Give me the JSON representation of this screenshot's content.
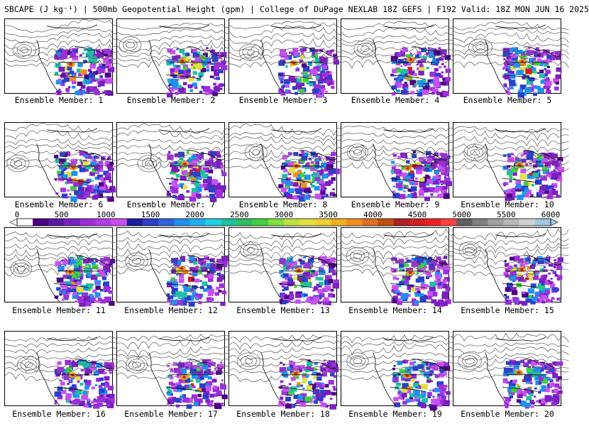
{
  "title": "SBCAPE (J kg⁻¹) | 500mb Geopotential Height (gpm) | College of DuPage NEXLAB 18Z GEFS | F192 Valid: 18Z MON JUN 16 2025",
  "members": [
    {
      "label": "Ensemble Member: 1",
      "low": [
        0.18,
        0.42
      ]
    },
    {
      "label": "Ensemble Member: 2",
      "low": [
        0.12,
        0.35
      ]
    },
    {
      "label": "Ensemble Member: 3",
      "low": [
        0.2,
        0.45
      ]
    },
    {
      "label": "Ensemble Member: 4",
      "low": [
        0.22,
        0.4
      ]
    },
    {
      "label": "Ensemble Member: 5",
      "low": [
        0.25,
        0.38
      ]
    },
    {
      "label": "Ensemble Member: 6",
      "low": [
        0.12,
        0.55
      ]
    },
    {
      "label": "Ensemble Member: 7",
      "low": [
        0.3,
        0.55
      ]
    },
    {
      "label": "Ensemble Member: 8",
      "low": [
        0.25,
        0.4
      ]
    },
    {
      "label": "Ensemble Member: 9",
      "low": [
        0.15,
        0.4
      ]
    },
    {
      "label": "Ensemble Member: 10",
      "low": [
        0.2,
        0.4
      ]
    },
    {
      "label": "Ensemble Member: 11",
      "low": [
        0.15,
        0.55
      ]
    },
    {
      "label": "Ensemble Member: 12",
      "low": [
        0.18,
        0.45
      ]
    },
    {
      "label": "Ensemble Member: 13",
      "low": [
        0.2,
        0.3
      ]
    },
    {
      "label": "Ensemble Member: 14",
      "low": [
        0.15,
        0.38
      ]
    },
    {
      "label": "Ensemble Member: 15",
      "low": [
        0.15,
        0.3
      ]
    },
    {
      "label": "Ensemble Member: 16",
      "low": [
        0.22,
        0.45
      ]
    },
    {
      "label": "Ensemble Member: 17",
      "low": [
        0.18,
        0.45
      ]
    },
    {
      "label": "Ensemble Member: 18",
      "low": [
        0.18,
        0.4
      ]
    },
    {
      "label": "Ensemble Member: 19",
      "low": [
        0.15,
        0.4
      ]
    },
    {
      "label": "Ensemble Member: 20",
      "low": [
        0.15,
        0.4
      ]
    }
  ],
  "colorbar": {
    "ticks": [
      "0",
      "500",
      "1000",
      "1500",
      "2000",
      "2500",
      "3000",
      "3500",
      "4000",
      "4500",
      "5000",
      "5500",
      "6000"
    ],
    "colors": [
      "#ffffff",
      "#4b0082",
      "#5a1aa0",
      "#7b1fc0",
      "#9b30d8",
      "#b43ce8",
      "#c850f0",
      "#1e1ea0",
      "#2a40c8",
      "#3060e0",
      "#2090f0",
      "#20b0f0",
      "#20d0e8",
      "#20c0a0",
      "#30c060",
      "#40d040",
      "#80e040",
      "#c0e040",
      "#e0e040",
      "#f0d030",
      "#f0b020",
      "#f09020",
      "#e07020",
      "#c05010",
      "#b02020",
      "#d02020",
      "#f02020",
      "#ff4040",
      "#606060",
      "#808080",
      "#a0a0a0",
      "#b8b8b8",
      "#d0d0d0",
      "#a0c8e0"
    ]
  }
}
